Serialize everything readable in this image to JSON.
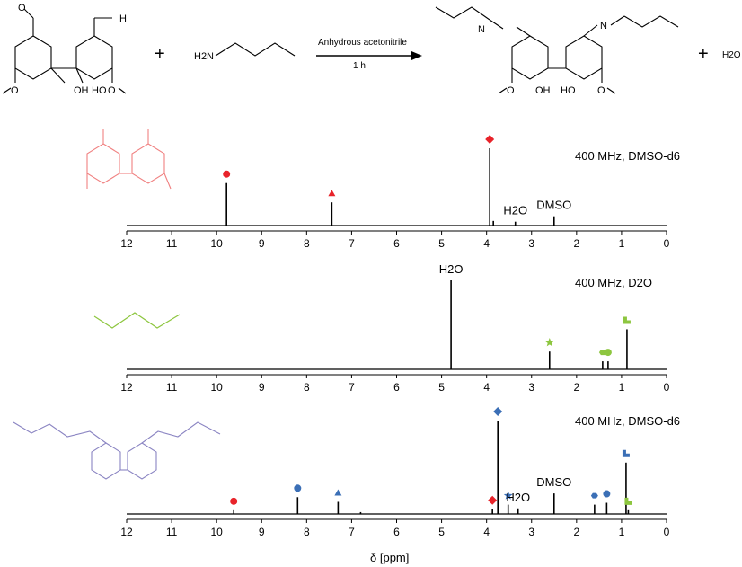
{
  "reaction": {
    "plus1": "+",
    "plus2": "+",
    "amine_formula": "H2N",
    "water": "H2O",
    "condition_top": "Anhydrous acetonitrile",
    "condition_bottom": "1 h",
    "labels": {
      "aldehyde_H_left": "O",
      "aldehyde_H_right": "H",
      "oh": "OH",
      "ho": "HO",
      "ome": "O",
      "imine_n": "N"
    }
  },
  "colors": {
    "red": "#e8232a",
    "green": "#8dc63f",
    "blue": "#3b6fb6",
    "aldehyde_struct": "#f08080",
    "amine_struct": "#8dc63f",
    "imine_struct": "#8a84c2"
  },
  "chart_data": [
    {
      "type": "line",
      "title": "400 MHz, DMSO-d6",
      "x_reversed": true,
      "xlim": [
        12,
        0
      ],
      "xticks": [
        12,
        11,
        10,
        9,
        8,
        7,
        6,
        5,
        4,
        3,
        2,
        1,
        0
      ],
      "peaks": [
        {
          "x": 9.78,
          "h": 0.55,
          "marker": "circle",
          "color": "#e8232a"
        },
        {
          "x": 7.44,
          "h": 0.3,
          "marker": "triangle",
          "color": "#e8232a"
        },
        {
          "x": 3.93,
          "h": 1.0,
          "marker": "diamond",
          "color": "#e8232a"
        },
        {
          "x": 3.85,
          "h": 0.06,
          "marker": null
        },
        {
          "x": 3.36,
          "h": 0.05,
          "marker": null,
          "text": "H2O"
        },
        {
          "x": 2.5,
          "h": 0.12,
          "marker": null,
          "text": "DMSO"
        }
      ]
    },
    {
      "type": "line",
      "title": "400 MHz, D2O",
      "x_reversed": true,
      "xlim": [
        12,
        0
      ],
      "xticks": [
        12,
        11,
        10,
        9,
        8,
        7,
        6,
        5,
        4,
        3,
        2,
        1,
        0
      ],
      "peaks": [
        {
          "x": 4.79,
          "h": 1.0,
          "marker": null,
          "text": "H2O"
        },
        {
          "x": 2.6,
          "h": 0.2,
          "marker": "star",
          "color": "#8dc63f"
        },
        {
          "x": 1.42,
          "h": 0.09,
          "marker": "hexagon",
          "color": "#8dc63f"
        },
        {
          "x": 1.3,
          "h": 0.09,
          "marker": "circle",
          "color": "#8dc63f"
        },
        {
          "x": 0.88,
          "h": 0.45,
          "marker": "square-step",
          "color": "#8dc63f"
        }
      ]
    },
    {
      "type": "line",
      "title": "400 MHz, DMSO-d6",
      "x_reversed": true,
      "xlim": [
        12,
        0
      ],
      "xticks": [
        12,
        11,
        10,
        9,
        8,
        7,
        6,
        5,
        4,
        3,
        2,
        1,
        0
      ],
      "xlabel": "δ [ppm]",
      "peaks": [
        {
          "x": 9.62,
          "h": 0.04,
          "marker": "circle",
          "color": "#e8232a"
        },
        {
          "x": 8.2,
          "h": 0.18,
          "marker": "circle",
          "color": "#3b6fb6"
        },
        {
          "x": 7.3,
          "h": 0.13,
          "marker": "triangle",
          "color": "#3b6fb6"
        },
        {
          "x": 6.8,
          "h": 0.02,
          "marker": null
        },
        {
          "x": 3.75,
          "h": 1.0,
          "marker": "diamond",
          "color": "#3b6fb6"
        },
        {
          "x": 3.87,
          "h": 0.05,
          "marker": "diamond",
          "color": "#e8232a"
        },
        {
          "x": 3.52,
          "h": 0.1,
          "marker": "star",
          "color": "#3b6fb6"
        },
        {
          "x": 3.3,
          "h": 0.06,
          "marker": null,
          "text": "H2O"
        },
        {
          "x": 2.5,
          "h": 0.22,
          "marker": null,
          "text": "DMSO"
        },
        {
          "x": 1.6,
          "h": 0.1,
          "marker": "hexagon",
          "color": "#3b6fb6"
        },
        {
          "x": 1.33,
          "h": 0.12,
          "marker": "circle",
          "color": "#3b6fb6"
        },
        {
          "x": 0.9,
          "h": 0.55,
          "marker": "square-step",
          "color": "#3b6fb6"
        },
        {
          "x": 0.85,
          "h": 0.04,
          "marker": "square-step",
          "color": "#8dc63f"
        }
      ]
    }
  ]
}
